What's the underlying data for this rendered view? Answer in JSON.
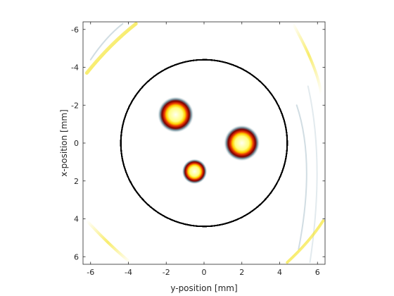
{
  "chart_data": {
    "type": "heatmap",
    "title": "",
    "xlabel": "y-position [mm]",
    "ylabel": "x-position [mm]",
    "xlim": [
      -6.4,
      6.4
    ],
    "ylim": [
      -6.4,
      6.4
    ],
    "y_axis_reversed": true,
    "x_ticks": [
      -6,
      -4,
      -2,
      0,
      2,
      4,
      6
    ],
    "y_ticks": [
      -6,
      -4,
      -2,
      0,
      2,
      4,
      6
    ],
    "x_tick_labels": [
      "-6",
      "-4",
      "-2",
      "0",
      "2",
      "4",
      "6"
    ],
    "y_tick_labels": [
      "-6",
      "-4",
      "-2",
      "0",
      "2",
      "4",
      "6"
    ],
    "grid": false,
    "colormap": "hot-cool diverging (white background)",
    "sensor_circle": {
      "center_y_pos": 0,
      "center_x_pos": 0,
      "radius": 4.4,
      "color": "#000000"
    },
    "sources": [
      {
        "y_pos": -1.5,
        "x_pos": -1.5,
        "radius": 0.5
      },
      {
        "y_pos": 2.0,
        "x_pos": 0.0,
        "radius": 0.5
      },
      {
        "y_pos": -0.5,
        "x_pos": 1.5,
        "radius": 0.35
      }
    ],
    "colors": {
      "core": "#fffff0",
      "mid": "#ffd000",
      "ring": "#e63000",
      "outer": "#7a0000",
      "halo": "#7c9aa6",
      "artifact_yellow": "#f5e42a",
      "artifact_blue": "#c5d4dc",
      "axes": "#262626"
    }
  }
}
